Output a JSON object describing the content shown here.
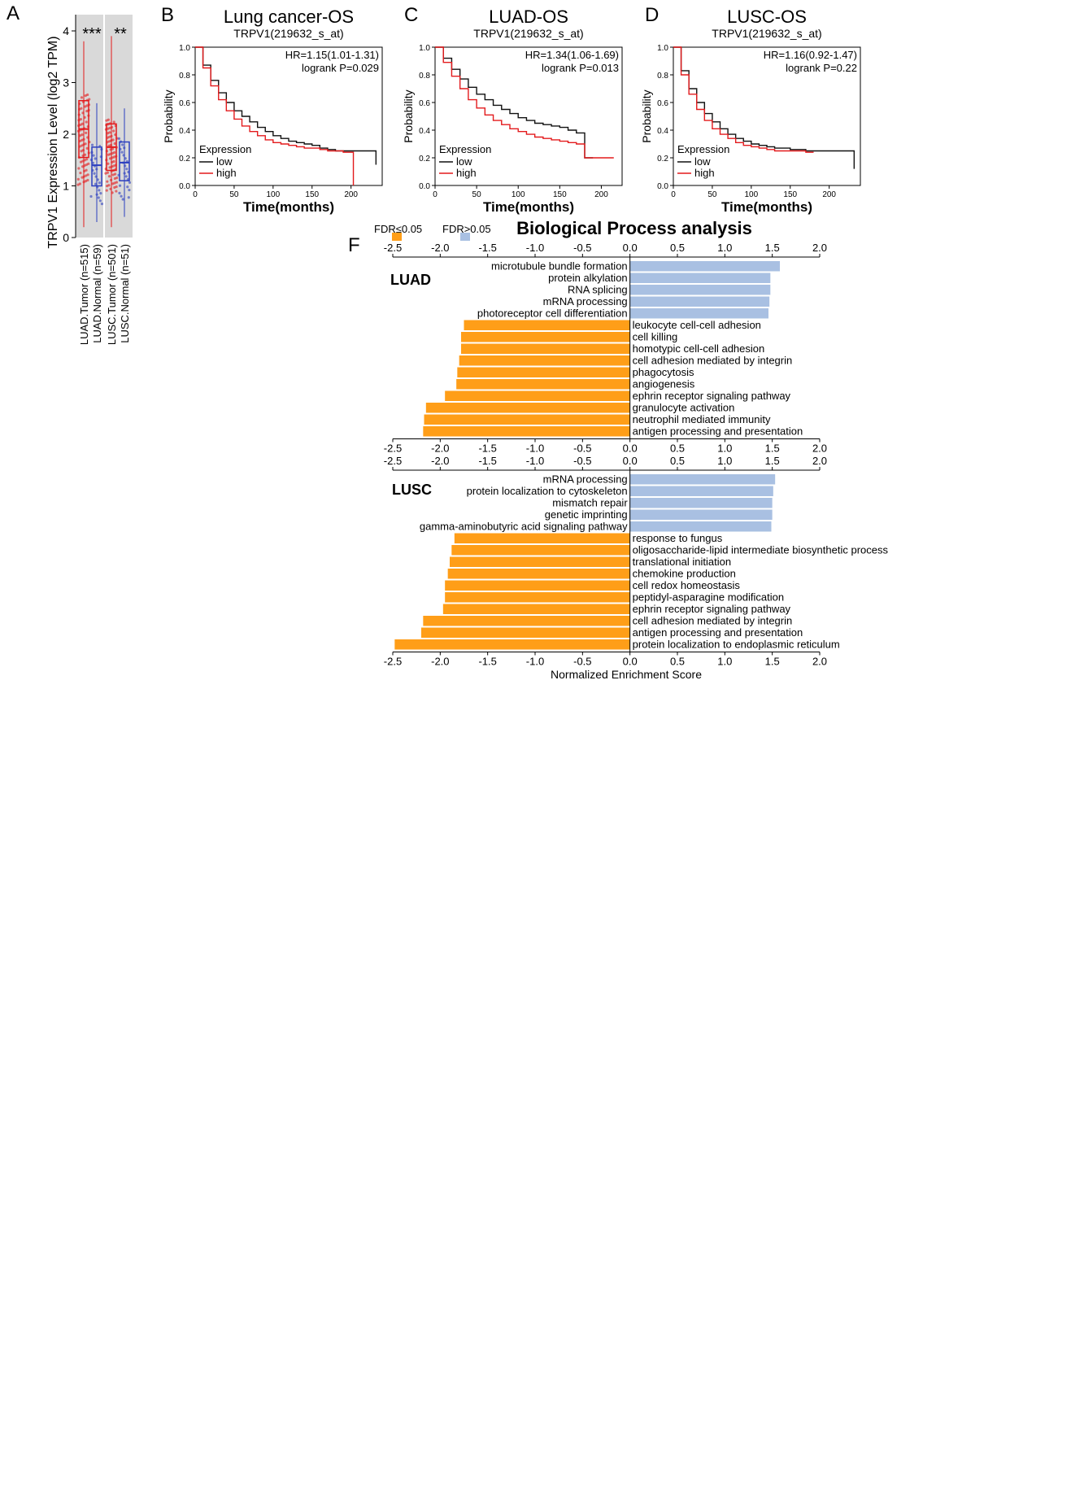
{
  "panel_letters": {
    "a": "A",
    "b": "B",
    "c": "C",
    "d": "D",
    "f": "F"
  },
  "colors": {
    "red": "#e31a1c",
    "blue": "#2c3fbf",
    "black": "#111111",
    "orange": "#ff9e18",
    "lightblue": "#a9c0e2",
    "grey_bg": "#d9d9d9"
  },
  "chart_data": [
    {
      "id": "A",
      "type": "box",
      "ylabel": "TRPV1 Expression Level (log2 TPM)",
      "ylim": [
        0,
        4
      ],
      "yticks": [
        0,
        1,
        2,
        3,
        4
      ],
      "categories": [
        "LUAD.Tumor (n=515)",
        "LUAD.Normal (n=59)",
        "LUSC.Tumor (n=501)",
        "LUSC.Normal (n=51)"
      ],
      "box": [
        {
          "q1": 1.55,
          "median": 2.1,
          "q3": 2.65,
          "lo": 0.2,
          "hi": 3.8,
          "color": "#e31a1c"
        },
        {
          "q1": 1.0,
          "median": 1.4,
          "q3": 1.75,
          "lo": 0.3,
          "hi": 2.6,
          "color": "#2c3fbf"
        },
        {
          "q1": 1.3,
          "median": 1.75,
          "q3": 2.2,
          "lo": 0.2,
          "hi": 3.9,
          "color": "#e31a1c"
        },
        {
          "q1": 1.1,
          "median": 1.45,
          "q3": 1.85,
          "lo": 0.4,
          "hi": 2.5,
          "color": "#2c3fbf"
        }
      ],
      "significance": [
        "***",
        "**"
      ]
    },
    {
      "id": "B",
      "type": "line",
      "title": "Lung cancer-OS",
      "subtitle": "TRPV1(219632_s_at)",
      "hr": "HR=1.15(1.01-1.31)",
      "logrank": "logrank P=0.029",
      "xlabel": "Time(months)",
      "ylabel": "Probability",
      "xlim": [
        0,
        240
      ],
      "ylim": [
        0,
        1
      ],
      "xticks": [
        0,
        50,
        100,
        150,
        200
      ],
      "yticks": [
        0.0,
        0.2,
        0.4,
        0.6,
        0.8,
        1.0
      ],
      "legend_title": "Expression",
      "series": [
        {
          "name": "low",
          "color": "#111111",
          "x": [
            0,
            10,
            20,
            30,
            40,
            50,
            60,
            70,
            80,
            90,
            100,
            110,
            120,
            130,
            140,
            150,
            160,
            170,
            180,
            190,
            200,
            210,
            220,
            232
          ],
          "y": [
            1.0,
            0.87,
            0.76,
            0.67,
            0.6,
            0.54,
            0.5,
            0.46,
            0.42,
            0.39,
            0.36,
            0.34,
            0.32,
            0.31,
            0.3,
            0.29,
            0.27,
            0.26,
            0.25,
            0.25,
            0.25,
            0.25,
            0.25,
            0.15
          ]
        },
        {
          "name": "high",
          "color": "#e31a1c",
          "x": [
            0,
            10,
            20,
            30,
            40,
            50,
            60,
            70,
            80,
            90,
            100,
            110,
            120,
            130,
            140,
            150,
            160,
            170,
            180,
            190,
            200,
            203
          ],
          "y": [
            1.0,
            0.85,
            0.72,
            0.62,
            0.54,
            0.48,
            0.43,
            0.39,
            0.36,
            0.33,
            0.31,
            0.3,
            0.29,
            0.28,
            0.27,
            0.27,
            0.26,
            0.25,
            0.25,
            0.24,
            0.24,
            0.0
          ]
        }
      ]
    },
    {
      "id": "C",
      "type": "line",
      "title": "LUAD-OS",
      "subtitle": "TRPV1(219632_s_at)",
      "hr": "HR=1.34(1.06-1.69)",
      "logrank": "logrank P=0.013",
      "xlabel": "Time(months)",
      "ylabel": "Probability",
      "xlim": [
        0,
        225
      ],
      "ylim": [
        0,
        1
      ],
      "xticks": [
        0,
        50,
        100,
        150,
        200
      ],
      "yticks": [
        0.0,
        0.2,
        0.4,
        0.6,
        0.8,
        1.0
      ],
      "legend_title": "Expression",
      "series": [
        {
          "name": "low",
          "color": "#111111",
          "x": [
            0,
            10,
            20,
            30,
            40,
            50,
            60,
            70,
            80,
            90,
            100,
            110,
            120,
            130,
            140,
            150,
            160,
            170,
            180,
            190
          ],
          "y": [
            1.0,
            0.92,
            0.84,
            0.77,
            0.71,
            0.66,
            0.62,
            0.58,
            0.55,
            0.52,
            0.49,
            0.47,
            0.45,
            0.44,
            0.43,
            0.42,
            0.4,
            0.38,
            0.2,
            0.2
          ]
        },
        {
          "name": "high",
          "color": "#e31a1c",
          "x": [
            0,
            10,
            20,
            30,
            40,
            50,
            60,
            70,
            80,
            90,
            100,
            110,
            120,
            130,
            140,
            150,
            160,
            170,
            180,
            190,
            200,
            215
          ],
          "y": [
            1.0,
            0.89,
            0.79,
            0.7,
            0.62,
            0.56,
            0.51,
            0.47,
            0.44,
            0.41,
            0.39,
            0.37,
            0.35,
            0.34,
            0.33,
            0.32,
            0.31,
            0.3,
            0.2,
            0.2,
            0.2,
            0.2
          ]
        }
      ]
    },
    {
      "id": "D",
      "type": "line",
      "title": "LUSC-OS",
      "subtitle": "TRPV1(219632_s_at)",
      "hr": "HR=1.16(0.92-1.47)",
      "logrank": "logrank P=0.22",
      "xlabel": "Time(months)",
      "ylabel": "Probability",
      "xlim": [
        0,
        240
      ],
      "ylim": [
        0,
        1
      ],
      "xticks": [
        0,
        50,
        100,
        150,
        200
      ],
      "yticks": [
        0.0,
        0.2,
        0.4,
        0.6,
        0.8,
        1.0
      ],
      "legend_title": "Expression",
      "series": [
        {
          "name": "low",
          "color": "#111111",
          "x": [
            0,
            10,
            20,
            30,
            40,
            50,
            60,
            70,
            80,
            90,
            100,
            110,
            120,
            130,
            140,
            150,
            160,
            170,
            180,
            190,
            200,
            210,
            220,
            232
          ],
          "y": [
            1.0,
            0.83,
            0.7,
            0.6,
            0.52,
            0.46,
            0.41,
            0.37,
            0.34,
            0.32,
            0.3,
            0.29,
            0.28,
            0.27,
            0.27,
            0.26,
            0.26,
            0.25,
            0.25,
            0.25,
            0.25,
            0.25,
            0.25,
            0.12
          ]
        },
        {
          "name": "high",
          "color": "#e31a1c",
          "x": [
            0,
            10,
            20,
            30,
            40,
            50,
            60,
            70,
            80,
            90,
            100,
            110,
            120,
            130,
            140,
            150,
            160,
            170,
            180
          ],
          "y": [
            1.0,
            0.8,
            0.66,
            0.55,
            0.47,
            0.41,
            0.37,
            0.34,
            0.31,
            0.29,
            0.28,
            0.27,
            0.26,
            0.25,
            0.25,
            0.25,
            0.25,
            0.24,
            0.24
          ]
        }
      ]
    },
    {
      "id": "F",
      "type": "bar",
      "title": "Biological Process analysis",
      "legend": [
        "FDR≤0.05",
        "FDR>0.05"
      ],
      "xlabel": "Normalized Enrichment Score",
      "xlim": [
        -2.5,
        2.0
      ],
      "xticks": [
        -2.5,
        -2.0,
        -1.5,
        -1.0,
        -0.5,
        0.0,
        0.5,
        1.0,
        1.5,
        2.0
      ],
      "groups": [
        {
          "name": "LUAD",
          "categories": [
            "microtubule bundle formation",
            "protein alkylation",
            "RNA splicing",
            "mRNA processing",
            "photoreceptor cell differentiation",
            "leukocyte cell-cell adhesion",
            "cell killing",
            "homotypic cell-cell adhesion",
            "cell adhesion mediated by integrin",
            "phagocytosis",
            "angiogenesis",
            "ephrin receptor signaling pathway",
            "granulocyte activation",
            "neutrophil mediated immunity",
            "antigen processing and presentation"
          ],
          "values": [
            1.58,
            1.48,
            1.48,
            1.47,
            1.46,
            -1.75,
            -1.78,
            -1.78,
            -1.8,
            -1.82,
            -1.83,
            -1.95,
            -2.15,
            -2.17,
            -2.18
          ],
          "fdr_sig": [
            false,
            false,
            false,
            false,
            false,
            true,
            true,
            true,
            true,
            true,
            true,
            true,
            true,
            true,
            true
          ]
        },
        {
          "name": "LUSC",
          "categories": [
            "mRNA processing",
            "protein localization to cytoskeleton",
            "mismatch repair",
            "genetic imprinting",
            "gamma-aminobutyric acid signaling pathway",
            "response to fungus",
            "oligosaccharide-lipid intermediate biosynthetic process",
            "translational initiation",
            "chemokine production",
            "cell redox homeostasis",
            "peptidyl-asparagine modification",
            "ephrin receptor signaling pathway",
            "cell adhesion mediated by integrin",
            "antigen processing and presentation",
            "protein localization to endoplasmic reticulum"
          ],
          "values": [
            1.53,
            1.51,
            1.5,
            1.5,
            1.49,
            -1.85,
            -1.88,
            -1.9,
            -1.92,
            -1.95,
            -1.95,
            -1.97,
            -2.18,
            -2.2,
            -2.48
          ],
          "fdr_sig": [
            false,
            false,
            false,
            false,
            false,
            true,
            true,
            true,
            true,
            true,
            true,
            true,
            true,
            true,
            true
          ]
        }
      ]
    }
  ]
}
